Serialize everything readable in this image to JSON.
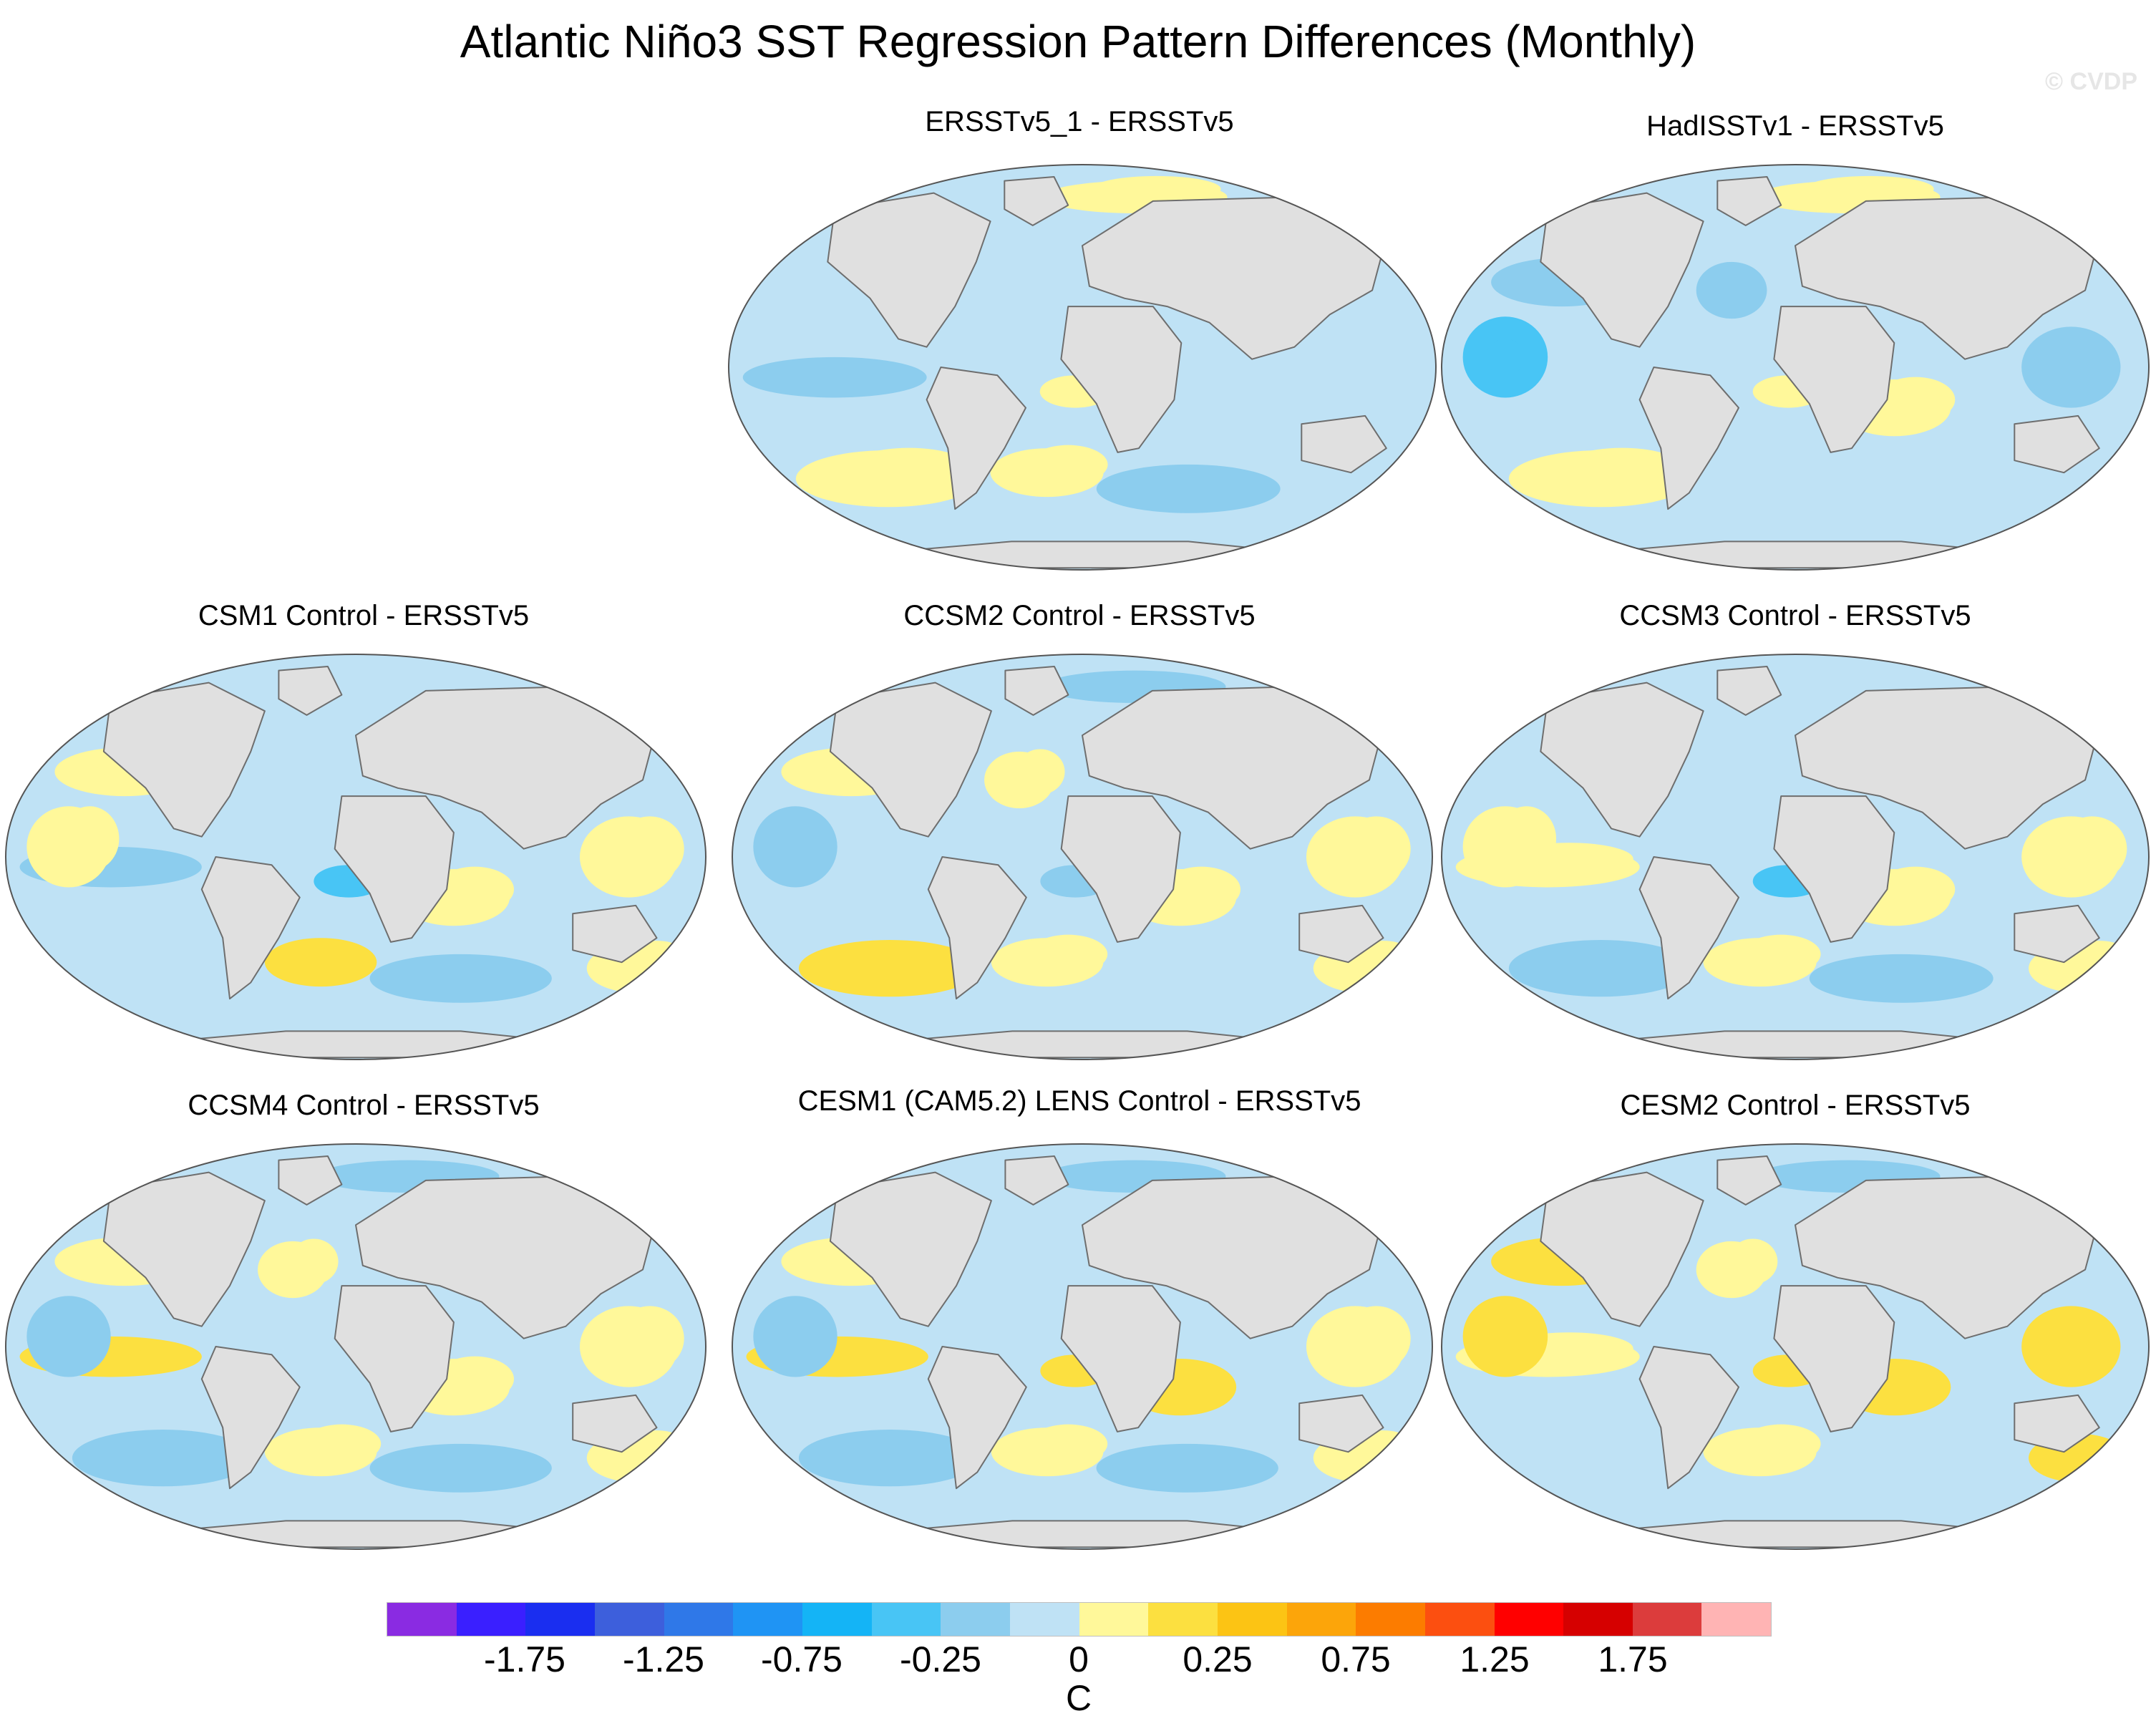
{
  "title": "Atlantic Niño3 SST Regression Pattern Differences (Monthly)",
  "watermark": "© CVDP",
  "panels": [
    {
      "title": "ERSSTv5_1 - ERSSTv5",
      "pattern": [
        0,
        -1,
        1,
        0,
        0,
        1,
        1,
        0,
        -1,
        0,
        1,
        0
      ]
    },
    {
      "title": "HadISSTv1 - ERSSTv5",
      "pattern": [
        -1,
        0,
        1,
        -2,
        -1,
        1,
        0,
        1,
        0,
        -1,
        1,
        0
      ]
    },
    {
      "title": "CSM1 Control - ERSSTv5",
      "pattern": [
        1,
        -1,
        0,
        1,
        0,
        -2,
        2,
        1,
        -1,
        1,
        0,
        1
      ]
    },
    {
      "title": "CCSM2 Control - ERSSTv5",
      "pattern": [
        1,
        0,
        2,
        -1,
        1,
        -1,
        1,
        1,
        0,
        1,
        -1,
        1
      ]
    },
    {
      "title": "CCSM3 Control - ERSSTv5",
      "pattern": [
        0,
        1,
        -1,
        1,
        0,
        -2,
        1,
        1,
        -1,
        1,
        0,
        1
      ]
    },
    {
      "title": "CCSM4 Control - ERSSTv5",
      "pattern": [
        1,
        2,
        -1,
        -1,
        1,
        0,
        1,
        1,
        -1,
        1,
        -1,
        1
      ]
    },
    {
      "title": "CESM1 (CAM5.2) LENS Control - ERSSTv5",
      "pattern": [
        1,
        2,
        -1,
        -1,
        0,
        2,
        1,
        2,
        -1,
        1,
        -1,
        1
      ]
    },
    {
      "title": "CESM2 Control - ERSSTv5",
      "pattern": [
        2,
        1,
        0,
        2,
        1,
        2,
        1,
        2,
        0,
        2,
        -1,
        2
      ]
    }
  ],
  "colorbar": {
    "unit": "C",
    "tick_labels": [
      "-1.75",
      "-1.25",
      "-0.75",
      "-0.25",
      "0",
      "0.25",
      "0.75",
      "1.25",
      "1.75"
    ],
    "colors": [
      "#8a2be2",
      "#3a1fff",
      "#1a2ef0",
      "#3d5fdc",
      "#2f78e8",
      "#1f94f4",
      "#14b4f6",
      "#48c5f5",
      "#8ccdee",
      "#bfe2f5",
      "#fff89a",
      "#fce040",
      "#fcc414",
      "#fca50a",
      "#fc7c00",
      "#fc4f10",
      "#ff0000",
      "#d60000",
      "#dc3c3c",
      "#ffb4b4"
    ]
  },
  "map_colors": {
    "ocean_neutral": "#bfe2f5",
    "negative_moderate": "#8ccdee",
    "negative_strong": "#48c5f5",
    "positive_light": "#fff89a",
    "positive_moderate": "#fce040",
    "land": "#e0e0e0",
    "coast": "#6e6e6e"
  }
}
